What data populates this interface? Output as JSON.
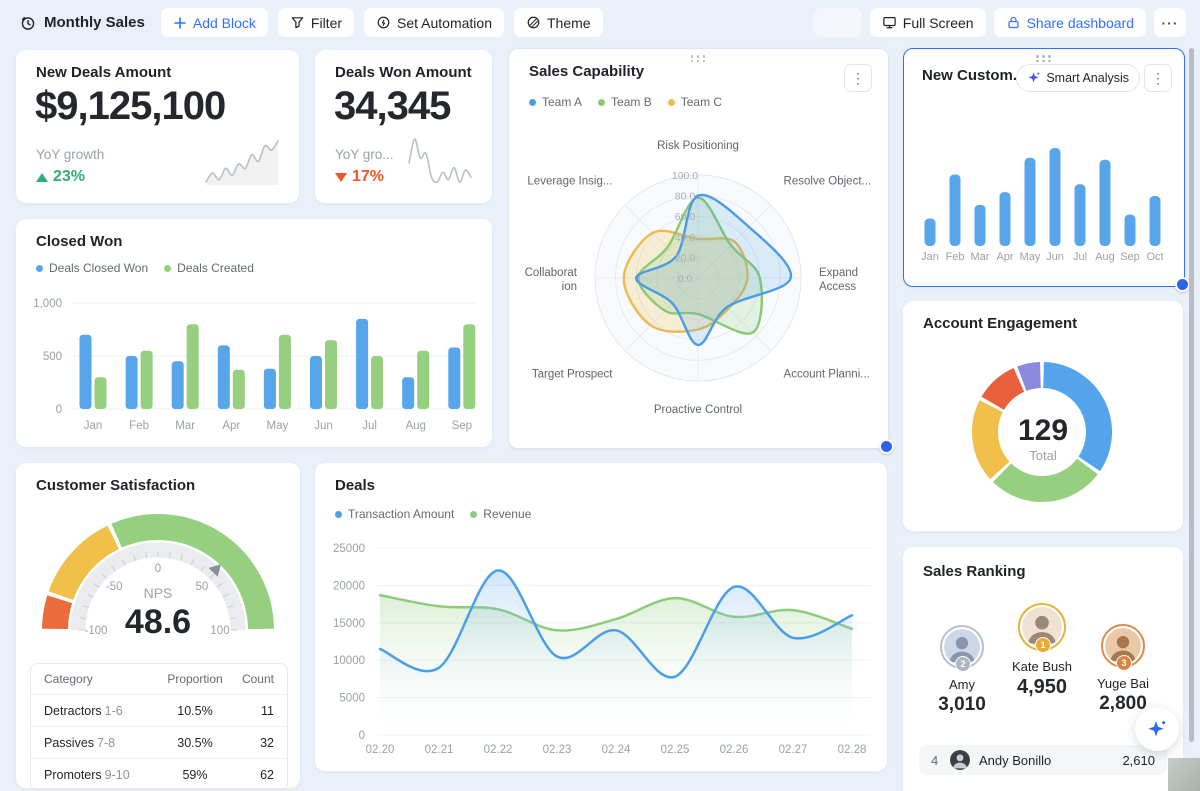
{
  "toolbar": {
    "title": "Monthly Sales",
    "add_block": "Add Block",
    "filter": "Filter",
    "set_automation": "Set Automation",
    "theme": "Theme",
    "full_screen": "Full Screen",
    "share": "Share dashboard",
    "more": "···"
  },
  "kpi_new_deals": {
    "title": "New Deals Amount",
    "value": "$9,125,100",
    "caption": "YoY growth",
    "delta": "23%",
    "trend": "up",
    "spark": {
      "type": "sparkline",
      "values": [
        4,
        6,
        4.5,
        7,
        5.5,
        8,
        7,
        10,
        8.5,
        12,
        11,
        13
      ],
      "color": "#b9bfc6",
      "fill": true
    }
  },
  "kpi_deals_won": {
    "title": "Deals Won Amount",
    "value": "34,345",
    "caption": "YoY gro...",
    "delta": "17%",
    "trend": "down",
    "spark": {
      "type": "sparkline",
      "values": [
        7,
        12,
        8,
        9,
        4,
        3,
        5,
        3.5,
        6,
        3,
        5.5,
        4
      ],
      "color": "#b9bfc6",
      "fill": false
    }
  },
  "sales_capability": {
    "title": "Sales Capability",
    "legend": [
      {
        "label": "Team A",
        "color": "#4b9be5"
      },
      {
        "label": "Team B",
        "color": "#8cc973"
      },
      {
        "label": "Team C",
        "color": "#edb952"
      }
    ],
    "chart": {
      "type": "radar",
      "axes": [
        "Risk Positioning",
        "Resolve Object...",
        "Expand\nAccess",
        "Account Planni...",
        "Proactive Control",
        "Target Prospect",
        "Collaborat\nion",
        "Leverage Insig..."
      ],
      "ticks": [
        "100.0",
        "80.0",
        "60.0",
        "40.0",
        "20.0",
        "0.0"
      ],
      "max": 100,
      "series": [
        {
          "name": "Team C",
          "color": "#edb952",
          "fill": "rgba(240,192,74,0.22)",
          "values": [
            38,
            50,
            48,
            42,
            50,
            65,
            72,
            62
          ]
        },
        {
          "name": "Team B",
          "color": "#8cc973",
          "fill": "rgba(143,206,122,0.20)",
          "values": [
            78,
            45,
            60,
            75,
            35,
            45,
            58,
            42
          ]
        },
        {
          "name": "Team A",
          "color": "#4b9be5",
          "fill": "rgba(78,159,232,0.18)",
          "values": [
            80,
            70,
            90,
            40,
            65,
            35,
            60,
            30
          ]
        }
      ]
    }
  },
  "new_customers": {
    "title": "New Custom...",
    "smart_analysis": "Smart Analysis",
    "chart": {
      "type": "bar",
      "categories": [
        "Jan",
        "Feb",
        "Mar",
        "Apr",
        "May",
        "Jun",
        "Jul",
        "Aug",
        "Sep",
        "Oct"
      ],
      "values": [
        28,
        73,
        42,
        55,
        90,
        100,
        63,
        88,
        32,
        51
      ],
      "ymax": 100,
      "color": "#57a5eb"
    }
  },
  "closed_won": {
    "title": "Closed Won",
    "legend": [
      {
        "label": "Deals Closed Won",
        "color": "#57a5eb"
      },
      {
        "label": "Deals Created",
        "color": "#95cf7f"
      }
    ],
    "chart": {
      "type": "grouped_bar",
      "categories": [
        "Jan",
        "Feb",
        "Mar",
        "Apr",
        "May",
        "Jun",
        "Jul",
        "Aug",
        "Sep"
      ],
      "series": [
        {
          "name": "Deals Closed Won",
          "color": "#57a5eb",
          "values": [
            700,
            500,
            450,
            600,
            380,
            500,
            850,
            300,
            580
          ]
        },
        {
          "name": "Deals Created",
          "color": "#95cf7f",
          "values": [
            300,
            550,
            800,
            370,
            700,
            650,
            500,
            550,
            800
          ]
        }
      ],
      "ymax": 1000,
      "yticks": [
        {
          "v": 0,
          "label": "0"
        },
        {
          "v": 500,
          "label": "500"
        },
        {
          "v": 1000,
          "label": "1,000"
        }
      ]
    }
  },
  "account_engagement": {
    "title": "Account Engagement",
    "total": "129",
    "total_label": "Total",
    "chart": {
      "type": "donut",
      "values": [
        45,
        36,
        26,
        14,
        8
      ],
      "colors": [
        "#55a3ea",
        "#95cf7f",
        "#f0c04a",
        "#e8613c",
        "#8b8ade"
      ]
    }
  },
  "customer_satisfaction": {
    "title": "Customer Satisfaction",
    "metric": "NPS",
    "value_label": "48.6",
    "gauge": {
      "type": "gauge",
      "min": -100,
      "max": 100,
      "value": 48.6,
      "zones": [
        {
          "from": -100,
          "to": -80,
          "color": "#ec6c3e"
        },
        {
          "from": -79,
          "to": -28,
          "color": "#f0c04a"
        },
        {
          "from": -27,
          "to": 100,
          "color": "#95cf7f"
        }
      ],
      "tick_labels": [
        {
          "v": -100,
          "label": "-100"
        },
        {
          "v": -50,
          "label": "-50"
        },
        {
          "v": 0,
          "label": "0"
        },
        {
          "v": 50,
          "label": "50"
        },
        {
          "v": 100,
          "label": "100"
        }
      ]
    },
    "table": {
      "headers": [
        "Category",
        "Proportion",
        "Count"
      ],
      "rows": [
        {
          "name": "Detractors",
          "range": "1-6",
          "proportion": "10.5%",
          "count": "11"
        },
        {
          "name": "Passives",
          "range": "7-8",
          "proportion": "30.5%",
          "count": "32"
        },
        {
          "name": "Promoters",
          "range": "9-10",
          "proportion": "59%",
          "count": "62"
        }
      ]
    }
  },
  "deals": {
    "title": "Deals",
    "legend": [
      {
        "label": "Transaction Amount",
        "color": "#4b9fe8"
      },
      {
        "label": "Revenue",
        "color": "#8fcb7d"
      }
    ],
    "chart": {
      "type": "area_line",
      "x": [
        "02.20",
        "02.21",
        "02.22",
        "02.23",
        "02.24",
        "02.25",
        "02.26",
        "02.27",
        "02.28"
      ],
      "series": [
        {
          "name": "Revenue",
          "color": "#8fcb7d",
          "fillTop": "rgba(143,203,125,0.30)",
          "values": [
            18700,
            17200,
            16800,
            14000,
            15500,
            18300,
            15800,
            16700,
            14200
          ]
        },
        {
          "name": "Transaction Amount",
          "color": "#4b9fe8",
          "fillTop": "rgba(78,159,232,0.26)",
          "values": [
            11500,
            9000,
            22000,
            10500,
            14000,
            7800,
            19800,
            13000,
            16000
          ]
        }
      ],
      "ymax": 25000,
      "yticks": [
        {
          "v": 0,
          "label": "0"
        },
        {
          "v": 5000,
          "label": "5000"
        },
        {
          "v": 10000,
          "label": "10000"
        },
        {
          "v": 15000,
          "label": "15000"
        },
        {
          "v": 20000,
          "label": "20000"
        },
        {
          "v": 25000,
          "label": "25000"
        }
      ]
    }
  },
  "sales_ranking": {
    "title": "Sales Ranking",
    "podium": [
      {
        "rank": "2",
        "name": "Amy",
        "value": "3,010",
        "ring": "#b9c0c8",
        "badge": "#aeb6bf",
        "skin": "#ccd8e8",
        "tone": "#8796ad"
      },
      {
        "rank": "1",
        "name": "Kate Bush",
        "value": "4,950",
        "ring": "#e6b33d",
        "badge": "#e9ab35",
        "skin": "#f0e2d2",
        "tone": "#9c8877"
      },
      {
        "rank": "3",
        "name": "Yuge Bai",
        "value": "2,800",
        "ring": "#dd8a4e",
        "badge": "#d98443",
        "skin": "#e9c9a8",
        "tone": "#a8764f"
      }
    ],
    "rows": [
      {
        "rank": "4",
        "name": "Andy Bonillo",
        "value": "2,610"
      }
    ]
  }
}
